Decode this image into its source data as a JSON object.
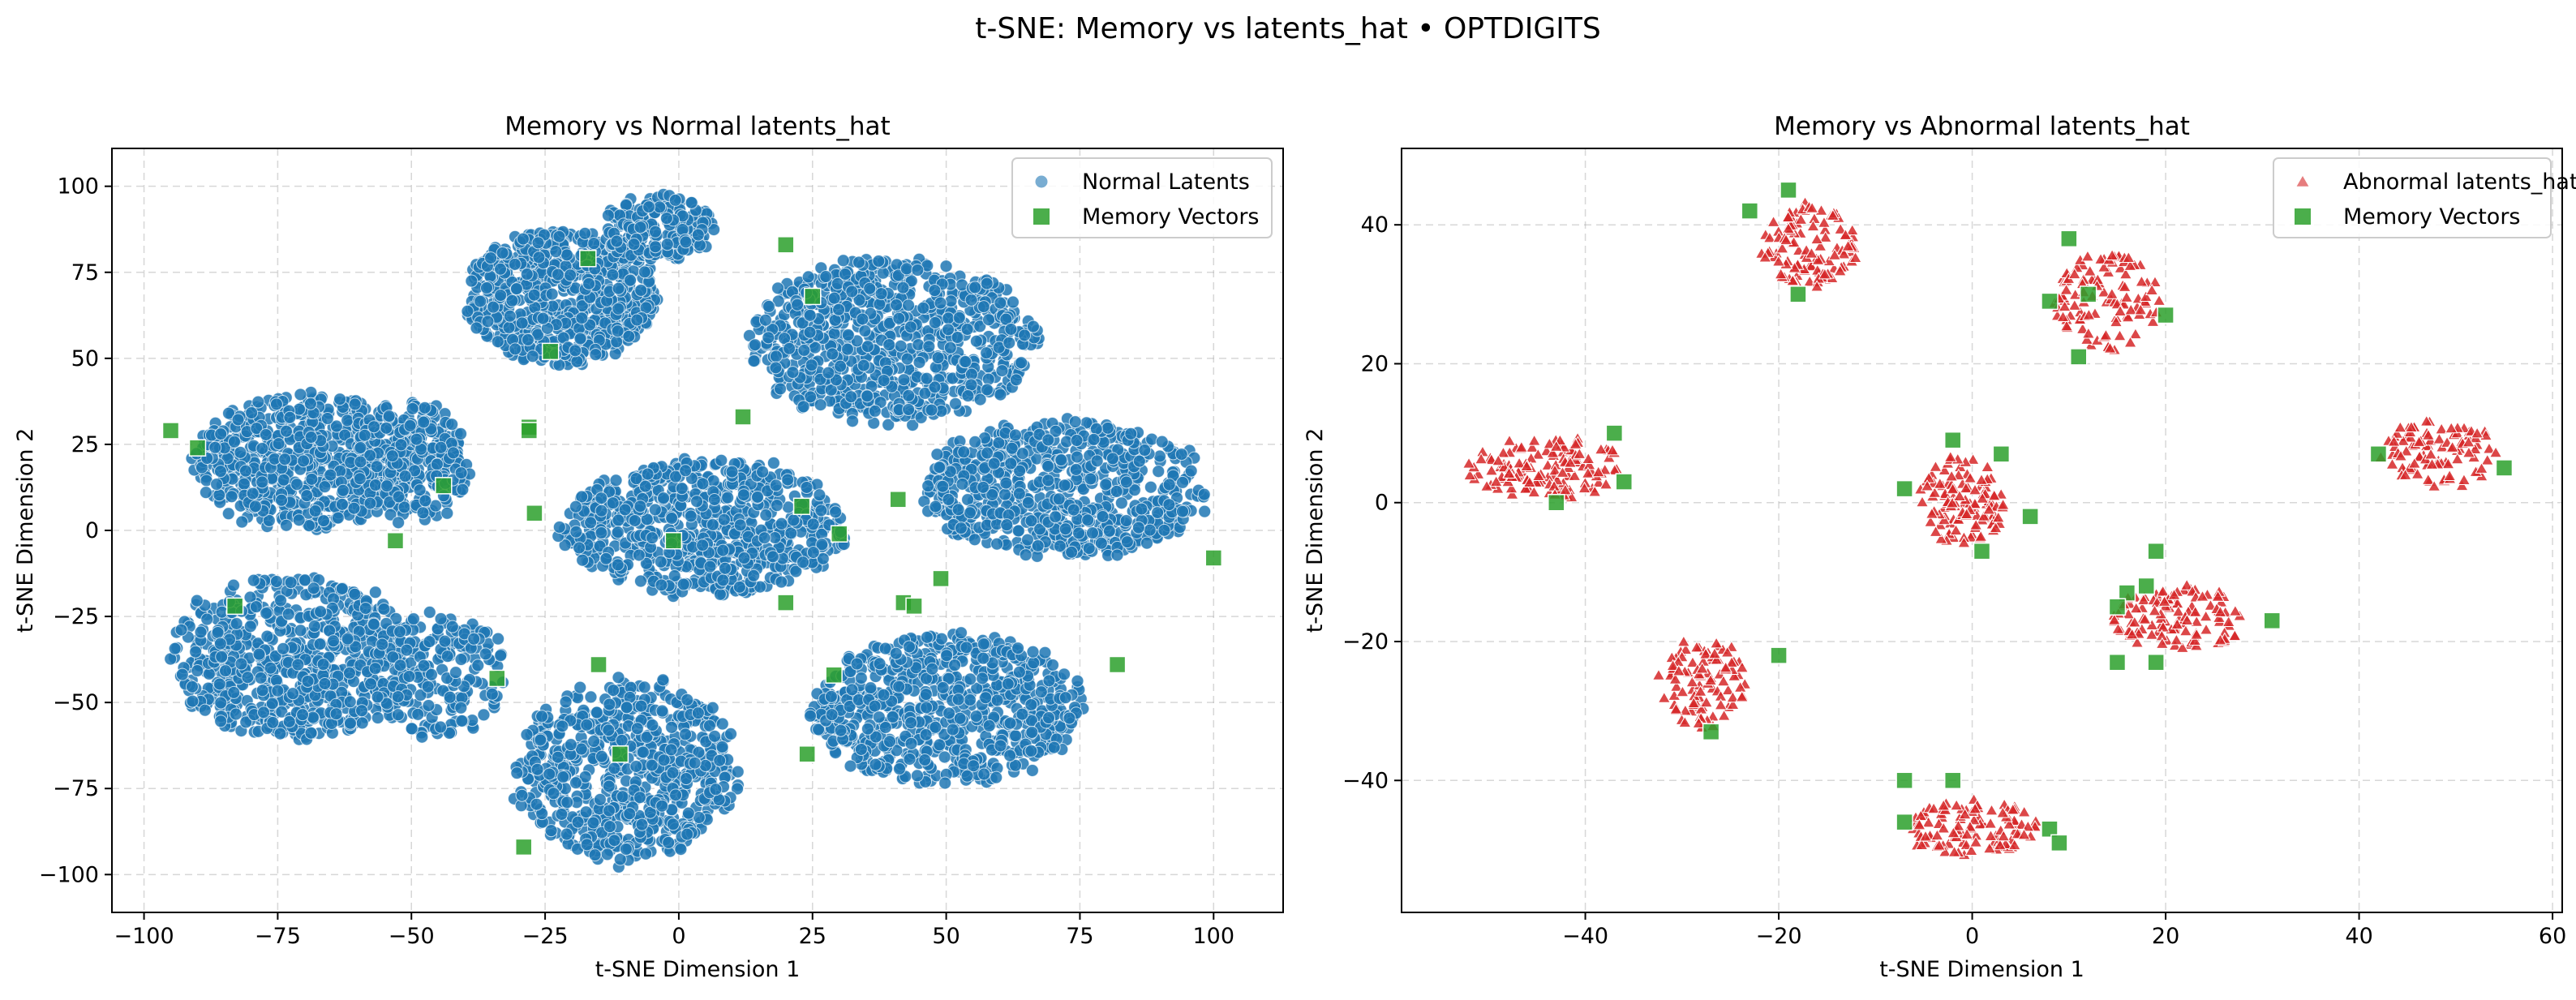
{
  "suptitle": "t-SNE: Memory vs latents_hat • OPTDIGITS",
  "colors": {
    "normal": "#1f77b4",
    "abnormal": "#d62728",
    "memory": "#2ca02c",
    "grid": "#b0b0b0"
  },
  "chart_data": [
    {
      "type": "scatter",
      "title": "Memory vs Normal latents_hat",
      "xlabel": "t-SNE Dimension 1",
      "ylabel": "t-SNE Dimension 2",
      "xlim": [
        -106,
        113
      ],
      "ylim": [
        -111,
        111
      ],
      "xticks": [
        -100,
        -75,
        -50,
        -25,
        0,
        25,
        50,
        75,
        100
      ],
      "yticks": [
        -100,
        -75,
        -50,
        -25,
        0,
        25,
        50,
        75,
        100
      ],
      "grid": true,
      "legend_position": "top-right",
      "series": [
        {
          "name": "Normal Latents",
          "marker": "circle",
          "color": "#1f77b4",
          "clusters": [
            {
              "cx": -22,
              "cy": 68,
              "rx": 18,
              "ry": 20,
              "n": 650
            },
            {
              "cx": -4,
              "cy": 88,
              "rx": 11,
              "ry": 10,
              "n": 200
            },
            {
              "cx": 40,
              "cy": 55,
              "rx": 27,
              "ry": 24,
              "n": 750
            },
            {
              "cx": -70,
              "cy": 20,
              "rx": 21,
              "ry": 20,
              "n": 650
            },
            {
              "cx": -50,
              "cy": 20,
              "rx": 11,
              "ry": 18,
              "n": 250
            },
            {
              "cx": 5,
              "cy": 1,
              "rx": 27,
              "ry": 20,
              "n": 700
            },
            {
              "cx": 72,
              "cy": 12,
              "rx": 27,
              "ry": 20,
              "n": 700
            },
            {
              "cx": -72,
              "cy": -37,
              "rx": 23,
              "ry": 24,
              "n": 650
            },
            {
              "cx": -45,
              "cy": -42,
              "rx": 13,
              "ry": 18,
              "n": 200
            },
            {
              "cx": 50,
              "cy": -52,
              "rx": 26,
              "ry": 22,
              "n": 700
            },
            {
              "cx": -10,
              "cy": -70,
              "rx": 21,
              "ry": 27,
              "n": 650
            }
          ]
        },
        {
          "name": "Memory Vectors",
          "marker": "square",
          "color": "#2ca02c",
          "points": [
            [
              -95,
              29
            ],
            [
              -90,
              24
            ],
            [
              -17,
              79
            ],
            [
              20,
              83
            ],
            [
              25,
              68
            ],
            [
              -24,
              52
            ],
            [
              -28,
              30
            ],
            [
              -28,
              29
            ],
            [
              12,
              33
            ],
            [
              -44,
              13
            ],
            [
              -53,
              -3
            ],
            [
              -27,
              5
            ],
            [
              -1,
              -3
            ],
            [
              23,
              7
            ],
            [
              30,
              -1
            ],
            [
              41,
              9
            ],
            [
              100,
              -8
            ],
            [
              49,
              -14
            ],
            [
              20,
              -21
            ],
            [
              42,
              -21
            ],
            [
              44,
              -22
            ],
            [
              -83,
              -22
            ],
            [
              -34,
              -43
            ],
            [
              -15,
              -39
            ],
            [
              29,
              -42
            ],
            [
              82,
              -39
            ],
            [
              -11,
              -65
            ],
            [
              24,
              -65
            ],
            [
              -29,
              -92
            ]
          ]
        }
      ]
    },
    {
      "type": "scatter",
      "title": "Memory vs Abnormal latents_hat",
      "xlabel": "t-SNE Dimension 1",
      "ylabel": "t-SNE Dimension 2",
      "xlim": [
        -59,
        61
      ],
      "ylim": [
        -59,
        51
      ],
      "xticks": [
        -40,
        -20,
        0,
        20,
        40,
        60
      ],
      "yticks": [
        -40,
        -20,
        0,
        20,
        40
      ],
      "grid": true,
      "legend_position": "top-right",
      "series": [
        {
          "name": "Abnormal latents_hat",
          "marker": "triangle",
          "color": "#d62728",
          "clusters": [
            {
              "cx": -44,
              "cy": 5,
              "rx": 8.5,
              "ry": 4.5,
              "n": 130
            },
            {
              "cx": -17,
              "cy": 37,
              "rx": 5,
              "ry": 6,
              "n": 110
            },
            {
              "cx": 14,
              "cy": 29,
              "rx": 5.5,
              "ry": 7,
              "n": 110
            },
            {
              "cx": 48,
              "cy": 7,
              "rx": 6,
              "ry": 5,
              "n": 100
            },
            {
              "cx": -1,
              "cy": 0,
              "rx": 4.5,
              "ry": 6.5,
              "n": 120
            },
            {
              "cx": -28,
              "cy": -26,
              "rx": 4.5,
              "ry": 6.5,
              "n": 100
            },
            {
              "cx": 21,
              "cy": -17,
              "rx": 7,
              "ry": 5,
              "n": 120
            },
            {
              "cx": 0,
              "cy": -47,
              "rx": 7,
              "ry": 4,
              "n": 110
            }
          ]
        },
        {
          "name": "Memory Vectors",
          "marker": "square",
          "color": "#2ca02c",
          "points": [
            [
              -23,
              42
            ],
            [
              -19,
              45
            ],
            [
              -18,
              30
            ],
            [
              10,
              38
            ],
            [
              8,
              29
            ],
            [
              11,
              21
            ],
            [
              12,
              30
            ],
            [
              20,
              27
            ],
            [
              -37,
              10
            ],
            [
              -36,
              3
            ],
            [
              -43,
              0
            ],
            [
              42,
              7
            ],
            [
              55,
              5
            ],
            [
              -2,
              9
            ],
            [
              3,
              7
            ],
            [
              -7,
              2
            ],
            [
              6,
              -2
            ],
            [
              1,
              -7
            ],
            [
              19,
              -7
            ],
            [
              18,
              -12
            ],
            [
              16,
              -13
            ],
            [
              15,
              -15
            ],
            [
              31,
              -17
            ],
            [
              15,
              -23
            ],
            [
              19,
              -23
            ],
            [
              -20,
              -22
            ],
            [
              -27,
              -33
            ],
            [
              -7,
              -40
            ],
            [
              -2,
              -40
            ],
            [
              -7,
              -46
            ],
            [
              8,
              -47
            ],
            [
              9,
              -49
            ]
          ]
        }
      ]
    }
  ]
}
